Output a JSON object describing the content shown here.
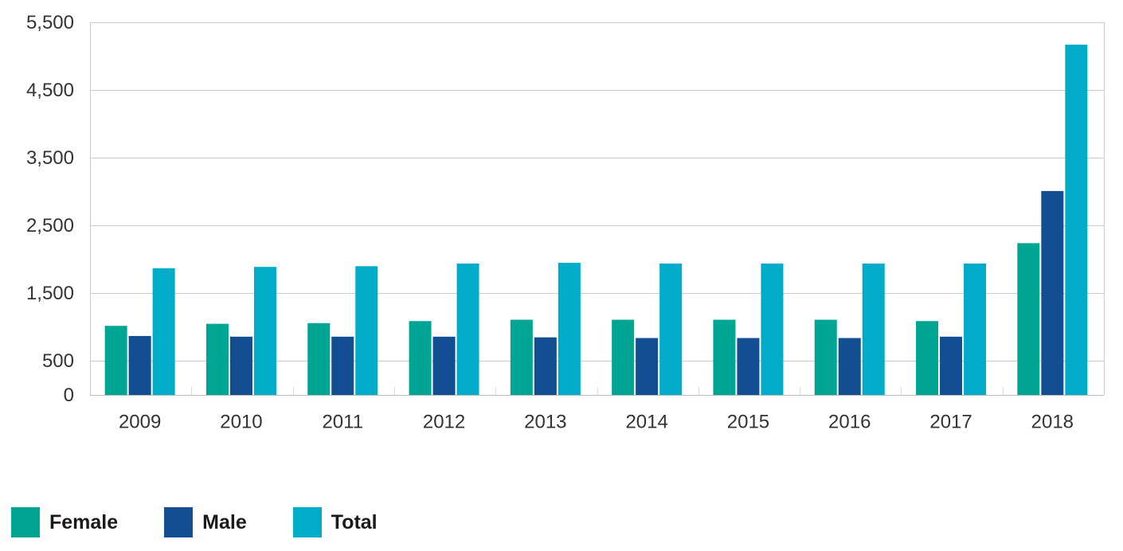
{
  "chart_data": {
    "type": "bar",
    "title": "",
    "xlabel": "",
    "ylabel": "",
    "categories": [
      "2009",
      "2010",
      "2011",
      "2012",
      "2013",
      "2014",
      "2015",
      "2016",
      "2017",
      "2018"
    ],
    "series": [
      {
        "name": "Female",
        "color": "#00a594",
        "values": [
          1020,
          1050,
          1060,
          1090,
          1110,
          1110,
          1110,
          1110,
          1090,
          2240
        ]
      },
      {
        "name": "Male",
        "color": "#124e91",
        "values": [
          870,
          860,
          860,
          860,
          850,
          840,
          840,
          840,
          860,
          3010
        ]
      },
      {
        "name": "Total",
        "color": "#00acc8",
        "values": [
          1870,
          1890,
          1900,
          1940,
          1950,
          1940,
          1940,
          1940,
          1940,
          5170
        ]
      }
    ],
    "yticks": [
      0,
      500,
      1500,
      2500,
      3500,
      4500,
      5500
    ],
    "ytick_labels": [
      "0",
      "500",
      "1,500",
      "2,500",
      "3,500",
      "4,500",
      "5,500"
    ],
    "ylim": [
      0,
      5500
    ],
    "grid": true,
    "legend_position": "bottom-left"
  }
}
